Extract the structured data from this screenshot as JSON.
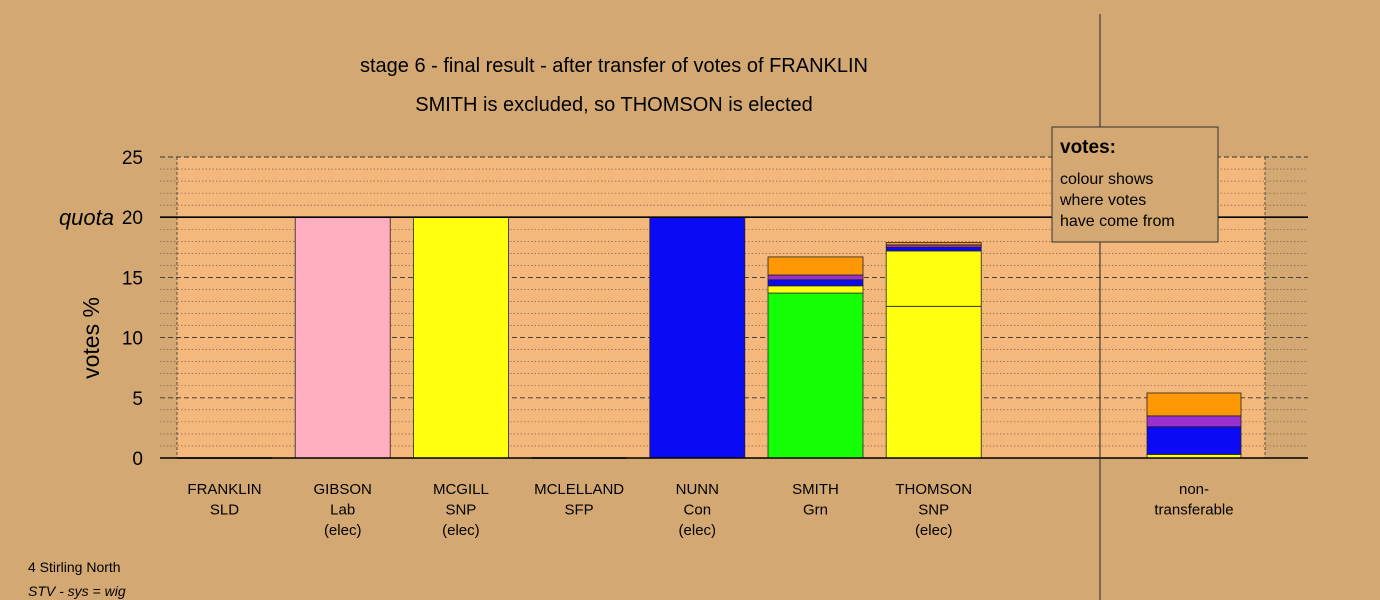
{
  "chart_data": {
    "type": "bar",
    "title": "stage 6 - final result - after transfer of votes of FRANKLIN",
    "subtitle": "SMITH is excluded, so THOMSON is elected",
    "ylabel": "votes %",
    "ylim": [
      0,
      25
    ],
    "yticks": [
      0,
      5,
      10,
      15,
      20,
      25
    ],
    "quota": 20,
    "quota_label": "quota",
    "grid": true,
    "candidates": [
      {
        "name": "FRANKLIN",
        "party": "SLD",
        "status": "",
        "segments": []
      },
      {
        "name": "GIBSON",
        "party": "Lab",
        "status": "(elec)",
        "segments": [
          {
            "value": 20.0,
            "color": "#ffaec0"
          }
        ]
      },
      {
        "name": "MCGILL",
        "party": "SNP",
        "status": "(elec)",
        "segments": [
          {
            "value": 20.0,
            "color": "#ffff10"
          }
        ]
      },
      {
        "name": "MCLELLAND",
        "party": "SFP",
        "status": "",
        "segments": []
      },
      {
        "name": "NUNN",
        "party": "Con",
        "status": "(elec)",
        "segments": [
          {
            "value": 20.0,
            "color": "#0a0af5"
          }
        ]
      },
      {
        "name": "SMITH",
        "party": "Grn",
        "status": "",
        "segments": [
          {
            "value": 13.7,
            "color": "#14ff05"
          },
          {
            "value": 0.6,
            "color": "#ffff10"
          },
          {
            "value": 0.5,
            "color": "#0a0af5"
          },
          {
            "value": 0.4,
            "color": "#9b30d0"
          },
          {
            "value": 1.5,
            "color": "#ff9805"
          }
        ]
      },
      {
        "name": "THOMSON",
        "party": "SNP",
        "status": "(elec)",
        "segments": [
          {
            "value": 12.6,
            "color": "#ffff10"
          },
          {
            "value": 4.6,
            "color": "#ffff10"
          },
          {
            "value": 0.3,
            "color": "#0a0af5"
          },
          {
            "value": 0.2,
            "color": "#9b30d0"
          },
          {
            "value": 0.2,
            "color": "#ff9805"
          }
        ]
      }
    ],
    "nontransferable": {
      "label_line1": "non-",
      "label_line2": "transferable",
      "segments": [
        {
          "value": 0.3,
          "color": "#ffff10"
        },
        {
          "value": 2.3,
          "color": "#0a0af5"
        },
        {
          "value": 0.9,
          "color": "#9b30d0"
        },
        {
          "value": 1.9,
          "color": "#ff9805"
        }
      ]
    },
    "legend": {
      "position": "top-right",
      "title": "votes:",
      "lines": [
        "colour shows",
        "where votes",
        "have come from"
      ]
    }
  },
  "footer": {
    "constituency": "4 Stirling North",
    "system": "STV - sys = wig"
  },
  "colors": {
    "background": "#d4a872",
    "plot_area": "#f5b87c",
    "legend_bg": "#d4a872"
  }
}
